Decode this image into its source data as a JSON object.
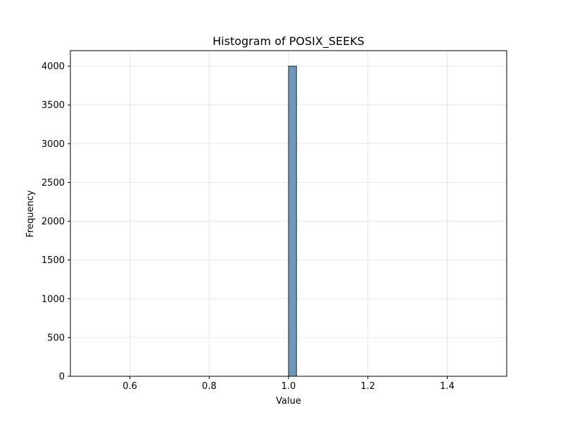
{
  "chart_data": {
    "type": "bar",
    "title": "Histogram of POSIX_SEEKS",
    "xlabel": "Value",
    "ylabel": "Frequency",
    "xlim": [
      0.45,
      1.55
    ],
    "ylim": [
      0,
      4200
    ],
    "x_ticks": [
      0.6,
      0.8,
      1.0,
      1.2,
      1.4
    ],
    "x_tick_labels": [
      "0.6",
      "0.8",
      "1.0",
      "1.2",
      "1.4"
    ],
    "y_ticks": [
      0,
      500,
      1000,
      1500,
      2000,
      2500,
      3000,
      3500,
      4000
    ],
    "y_tick_labels": [
      "0",
      "500",
      "1000",
      "1500",
      "2000",
      "2500",
      "3000",
      "3500",
      "4000"
    ],
    "grid": true,
    "bins": [
      {
        "start": 1.0,
        "end": 1.02,
        "count": 4000
      }
    ],
    "colors": {
      "bar_fill": "#6f97bc",
      "bar_edge": "#000000",
      "grid": "#e6e6e6",
      "axes": "#000000"
    }
  }
}
